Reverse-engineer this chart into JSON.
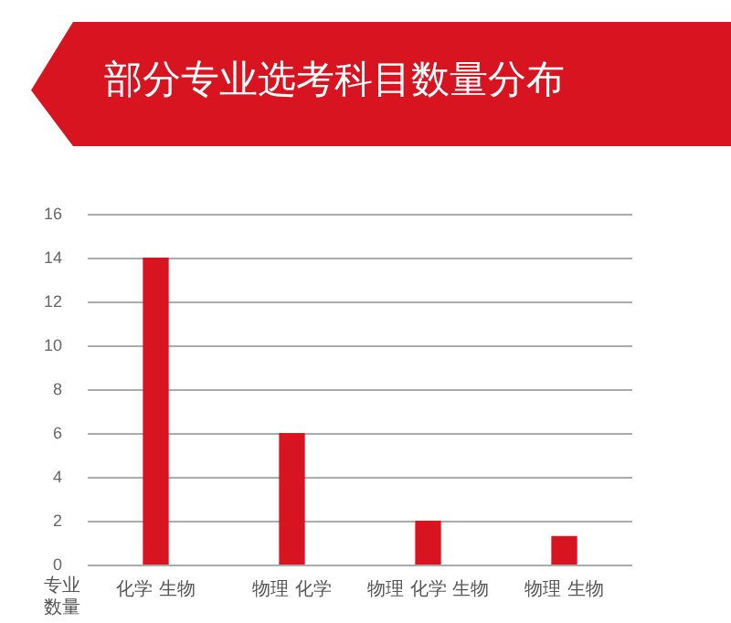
{
  "chart_data": {
    "type": "bar",
    "title": "部分专业选考科目数量分布",
    "ylabel": "专业数量",
    "categories": [
      "化学 生物",
      "物理 化学",
      "物理 化学 生物",
      "物理 生物"
    ],
    "values": [
      14,
      6,
      2,
      1.3
    ],
    "color": "#d7141f",
    "ylim": [
      0,
      16
    ],
    "yticks": [
      0,
      2,
      4,
      6,
      8,
      10,
      12,
      14,
      16
    ],
    "grid": "y"
  }
}
